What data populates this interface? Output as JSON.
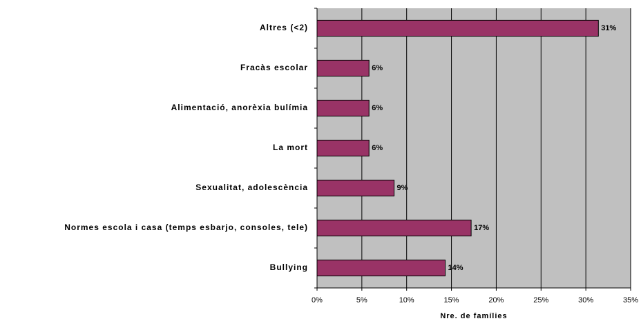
{
  "chart_data": {
    "type": "barh",
    "categories": [
      "Altres (<2)",
      "Fracàs escolar",
      "Alimentació, anorèxia bulímia",
      "La mort",
      "Sexualitat, adolescència",
      "Normes escola i casa (temps esbarjo, consoles, tele)",
      "Bullying"
    ],
    "values": [
      31.4,
      5.8,
      5.8,
      5.8,
      8.6,
      17.2,
      14.3
    ],
    "value_labels": [
      "31%",
      "6%",
      "6%",
      "6%",
      "9%",
      "17%",
      "14%"
    ],
    "color": "#993366",
    "xlabel": "Nre. de famílies",
    "xlim": [
      0,
      35
    ],
    "xticks": [
      {
        "value": 0,
        "label": "0%"
      },
      {
        "value": 5,
        "label": "5%"
      },
      {
        "value": 10,
        "label": "10%"
      },
      {
        "value": 15,
        "label": "15%"
      },
      {
        "value": 20,
        "label": "20%"
      },
      {
        "value": 25,
        "label": "25%"
      },
      {
        "value": 30,
        "label": "30%"
      },
      {
        "value": 35,
        "label": "35%"
      }
    ],
    "grid": true
  }
}
